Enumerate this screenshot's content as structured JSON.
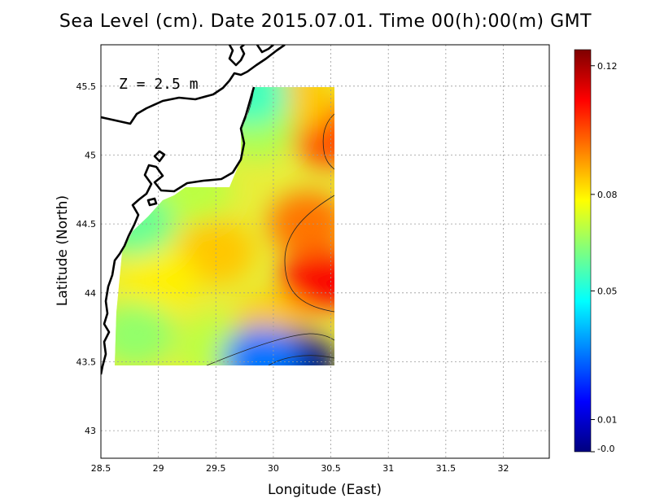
{
  "chart_data": {
    "type": "heatmap",
    "title": "Sea Level (cm). Date 2015.07.01. Time 00(h):00(m) GMT",
    "xlabel": "Longitude (East)",
    "ylabel": "Latitude (North)",
    "annotation": "Z = 2.5 m",
    "xlim": [
      28.5,
      32.4
    ],
    "ylim": [
      42.8,
      45.8
    ],
    "x_ticks": [
      "28.5",
      "29",
      "29.5",
      "30",
      "30.5",
      "31",
      "31.5",
      "32"
    ],
    "x_tick_values": [
      28.5,
      29,
      29.5,
      30,
      30.5,
      31,
      31.5,
      32
    ],
    "y_ticks": [
      "43",
      "43.5",
      "44",
      "44.5",
      "45",
      "45.5"
    ],
    "y_tick_values": [
      43,
      43.5,
      44,
      44.5,
      45,
      45.5
    ],
    "grid": true,
    "data_region": {
      "lon": [
        28.63,
        30.55
      ],
      "lat": [
        43.48,
        45.5
      ]
    },
    "colorbar": {
      "tick_labels": [
        "0.12",
        "0.08",
        "0.05",
        "0.01",
        "-0.0"
      ],
      "tick_values": [
        0.12,
        0.08,
        0.05,
        0.01,
        0.0
      ],
      "range": [
        0.0,
        0.125
      ],
      "colormap": [
        "#00007f",
        "#0000ff",
        "#007fff",
        "#00ffff",
        "#7fff7f",
        "#ffff00",
        "#ff7f00",
        "#ff0000",
        "#7f0000"
      ]
    },
    "field_points": [
      {
        "lon": 30.4,
        "lat": 44.1,
        "value": 0.11
      },
      {
        "lon": 30.5,
        "lat": 45.15,
        "value": 0.1
      },
      {
        "lon": 30.3,
        "lat": 44.5,
        "value": 0.095
      },
      {
        "lon": 29.5,
        "lat": 44.3,
        "value": 0.085
      },
      {
        "lon": 29.0,
        "lat": 44.1,
        "value": 0.08
      },
      {
        "lon": 30.2,
        "lat": 45.4,
        "value": 0.085
      },
      {
        "lon": 29.3,
        "lat": 44.75,
        "value": 0.07
      },
      {
        "lon": 29.85,
        "lat": 45.2,
        "value": 0.068
      },
      {
        "lon": 28.8,
        "lat": 44.5,
        "value": 0.06
      },
      {
        "lon": 28.8,
        "lat": 43.7,
        "value": 0.065
      },
      {
        "lon": 29.5,
        "lat": 43.6,
        "value": 0.07
      },
      {
        "lon": 30.0,
        "lat": 43.75,
        "value": 0.085
      },
      {
        "lon": 29.8,
        "lat": 45.45,
        "value": 0.055
      },
      {
        "lon": 30.2,
        "lat": 43.5,
        "value": 0.0
      },
      {
        "lon": 29.9,
        "lat": 43.52,
        "value": 0.03
      }
    ]
  }
}
